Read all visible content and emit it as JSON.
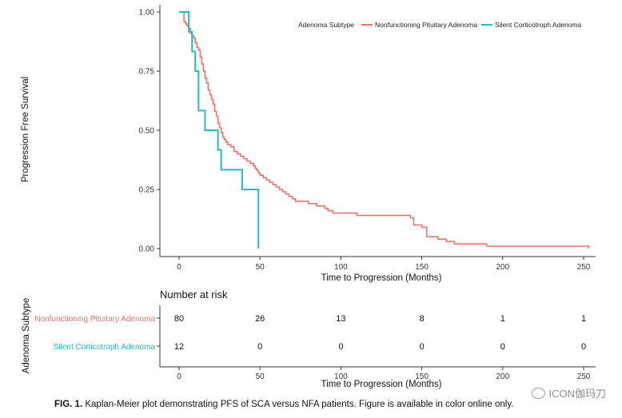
{
  "chart_data": [
    {
      "type": "line",
      "subtype": "kaplan-meier-step",
      "xlabel": "Time to Progression (Months)",
      "ylabel": "Progression Free Survival",
      "xlim": [
        0,
        255
      ],
      "ylim": [
        0,
        1
      ],
      "xticks": [
        0,
        50,
        100,
        150,
        200,
        250
      ],
      "yticks": [
        "0.00",
        "0.25",
        "0.50",
        "0.75",
        "1.00"
      ],
      "grid": false,
      "legend": {
        "title": "Adenoma Subtype",
        "position": "top-right",
        "entries": [
          "Nonfunctioning Pituitary Adenoma",
          "Silent Corticotroph Adenoma"
        ]
      },
      "series": [
        {
          "name": "Nonfunctioning Pituitary Adenoma",
          "color": "#e8736f",
          "x": [
            0,
            3,
            4,
            5,
            6,
            7,
            8,
            9,
            10,
            11,
            12,
            13,
            14,
            15,
            16,
            17,
            18,
            19,
            20,
            21,
            22,
            23,
            24,
            25,
            26,
            27,
            28,
            29,
            30,
            32,
            34,
            36,
            38,
            40,
            42,
            44,
            46,
            47,
            48,
            49,
            50,
            52,
            54,
            56,
            58,
            60,
            62,
            64,
            66,
            68,
            70,
            72,
            75,
            80,
            85,
            90,
            92,
            95,
            100,
            110,
            120,
            143,
            145,
            150,
            153,
            160,
            165,
            170,
            175,
            190,
            250,
            253
          ],
          "y": [
            1.0,
            0.96,
            0.95,
            0.94,
            0.93,
            0.91,
            0.9,
            0.89,
            0.87,
            0.85,
            0.84,
            0.81,
            0.78,
            0.75,
            0.72,
            0.7,
            0.67,
            0.65,
            0.63,
            0.61,
            0.58,
            0.56,
            0.53,
            0.51,
            0.49,
            0.47,
            0.46,
            0.45,
            0.44,
            0.43,
            0.41,
            0.4,
            0.39,
            0.38,
            0.37,
            0.36,
            0.35,
            0.34,
            0.33,
            0.32,
            0.31,
            0.3,
            0.29,
            0.28,
            0.27,
            0.26,
            0.25,
            0.24,
            0.23,
            0.22,
            0.21,
            0.2,
            0.2,
            0.19,
            0.18,
            0.17,
            0.16,
            0.15,
            0.15,
            0.14,
            0.14,
            0.13,
            0.1,
            0.09,
            0.05,
            0.04,
            0.03,
            0.02,
            0.02,
            0.01,
            0.01,
            0.0
          ]
        },
        {
          "name": "Silent Corticotroph Adenoma",
          "color": "#1fbfbf",
          "x": [
            0,
            6,
            8,
            10,
            12,
            16,
            20,
            24,
            26,
            39,
            48,
            49
          ],
          "y": [
            1.0,
            0.917,
            0.833,
            0.75,
            0.583,
            0.5,
            0.5,
            0.417,
            0.333,
            0.25,
            0.25,
            0.0
          ]
        }
      ]
    },
    {
      "type": "table",
      "title": "Number at risk",
      "ylabel": "Adenoma Subtype",
      "xlabel": "Time to Progression (Months)",
      "xticks": [
        0,
        50,
        100,
        150,
        200,
        250
      ],
      "rows": [
        {
          "label": "Nonfunctioning Pituitary Adenoma",
          "color": "#e8736f",
          "values": [
            80,
            26,
            13,
            8,
            1,
            1
          ]
        },
        {
          "label": "Silent Corticotroph Adenoma",
          "color": "#1fbfbf",
          "values": [
            12,
            0,
            0,
            0,
            0,
            0
          ]
        }
      ]
    }
  ],
  "caption": {
    "label": "FIG. 1.",
    "text": " Kaplan-Meier plot demonstrating PFS of SCA versus NFA patients. Figure is available in color online only."
  },
  "watermark": "ICON伽玛刀"
}
